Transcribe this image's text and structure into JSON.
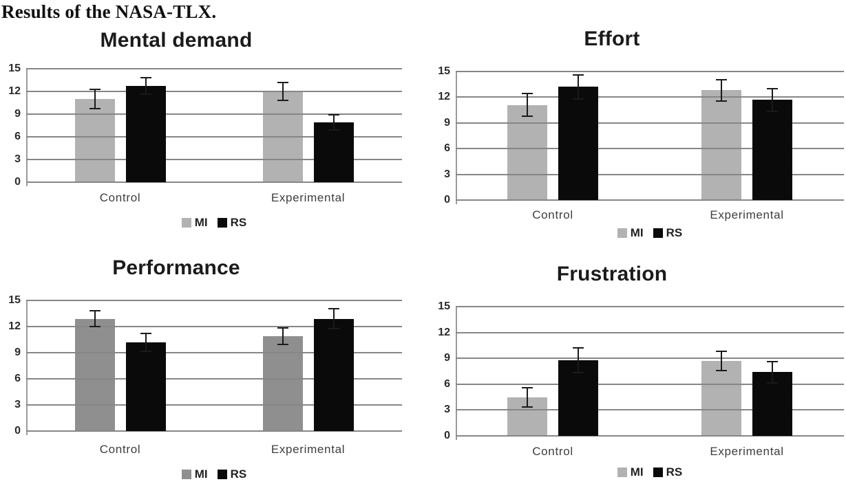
{
  "page": {
    "heading": "Results of the NASA-TLX."
  },
  "chart_data": [
    {
      "type": "bar",
      "title": "Mental demand",
      "categories": [
        "Control",
        "Experimental"
      ],
      "series": [
        {
          "name": "MI",
          "color": "#b2b2b2",
          "values": [
            11.0,
            12.0
          ],
          "errors": [
            1.4,
            1.3
          ]
        },
        {
          "name": "RS",
          "color": "#0a0a0a",
          "values": [
            12.7,
            7.9
          ],
          "errors": [
            1.2,
            1.1
          ]
        }
      ],
      "xlabel": "",
      "ylabel": "",
      "ylim": [
        0,
        15
      ],
      "yticks": [
        0,
        3,
        6,
        9,
        12,
        15
      ],
      "grid": true,
      "legend_position": "bottom",
      "error_bars": true
    },
    {
      "type": "bar",
      "title": "Effort",
      "categories": [
        "Control",
        "Experimental"
      ],
      "series": [
        {
          "name": "MI",
          "color": "#b2b2b2",
          "values": [
            11.1,
            12.8
          ],
          "errors": [
            1.4,
            1.3
          ]
        },
        {
          "name": "RS",
          "color": "#0a0a0a",
          "values": [
            13.2,
            11.7
          ],
          "errors": [
            1.5,
            1.4
          ]
        }
      ],
      "xlabel": "",
      "ylabel": "",
      "ylim": [
        0,
        15
      ],
      "yticks": [
        0,
        3,
        6,
        9,
        12,
        15
      ],
      "grid": true,
      "legend_position": "bottom",
      "error_bars": true
    },
    {
      "type": "bar",
      "title": "Performance",
      "categories": [
        "Control",
        "Experimental"
      ],
      "series": [
        {
          "name": "MI",
          "color": "#8f8f8f",
          "values": [
            12.9,
            10.9
          ],
          "errors": [
            1.0,
            1.0
          ]
        },
        {
          "name": "RS",
          "color": "#0a0a0a",
          "values": [
            10.2,
            12.9
          ],
          "errors": [
            1.1,
            1.2
          ]
        }
      ],
      "xlabel": "",
      "ylabel": "",
      "ylim": [
        0,
        15
      ],
      "yticks": [
        0,
        3,
        6,
        9,
        12,
        15
      ],
      "grid": true,
      "legend_position": "bottom",
      "error_bars": true
    },
    {
      "type": "bar",
      "title": "Frustration",
      "categories": [
        "Control",
        "Experimental"
      ],
      "series": [
        {
          "name": "MI",
          "color": "#b2b2b2",
          "values": [
            4.5,
            8.7
          ],
          "errors": [
            1.2,
            1.2
          ]
        },
        {
          "name": "RS",
          "color": "#0a0a0a",
          "values": [
            8.8,
            7.4
          ],
          "errors": [
            1.5,
            1.3
          ]
        }
      ],
      "xlabel": "",
      "ylabel": "",
      "ylim": [
        0,
        15
      ],
      "yticks": [
        0,
        3,
        6,
        9,
        12,
        15
      ],
      "grid": true,
      "legend_position": "bottom",
      "error_bars": true
    }
  ]
}
